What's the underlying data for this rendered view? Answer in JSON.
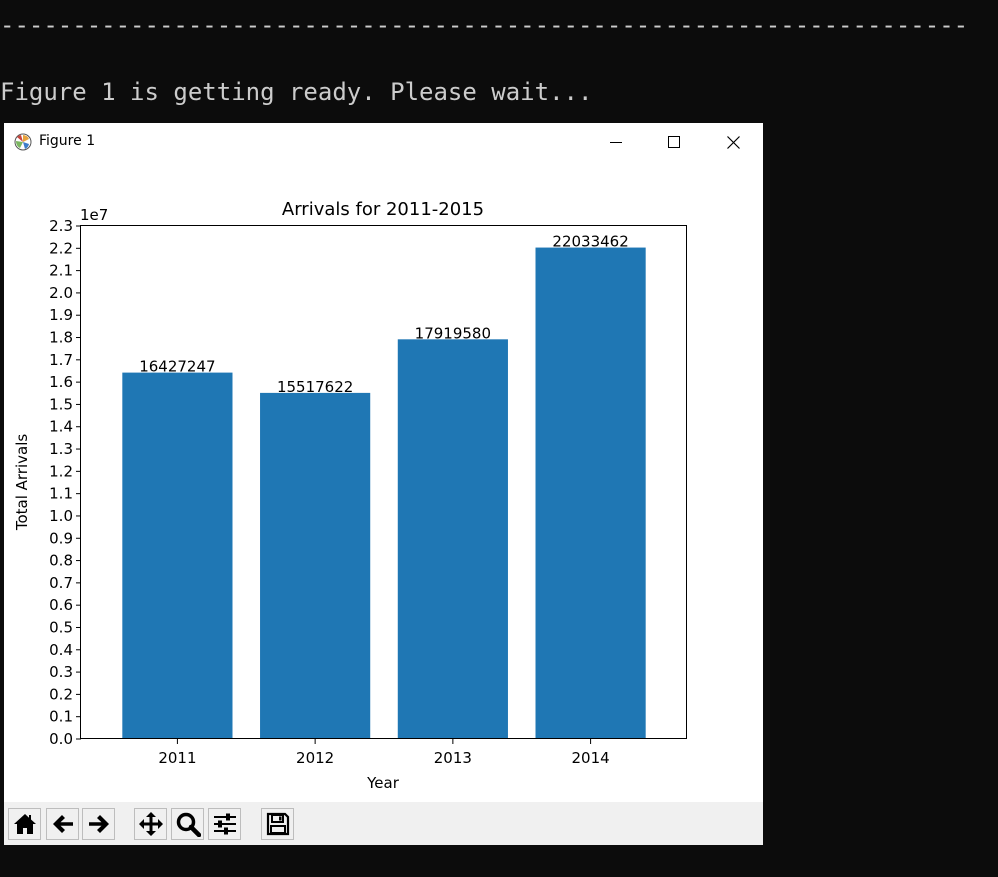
{
  "terminal": {
    "separator": "-------------------------------------------------------------------",
    "message": "Figure 1 is getting ready. Please wait..."
  },
  "window": {
    "title": "Figure 1",
    "controls": [
      "minimize-icon",
      "maximize-icon",
      "close-icon"
    ]
  },
  "toolbar": {
    "buttons": [
      "home-icon",
      "back-icon",
      "forward-icon",
      "pan-icon",
      "zoom-icon",
      "configure-icon",
      "save-icon"
    ]
  },
  "colors": {
    "bar": "#1f77b4",
    "terminal_bg": "#0c0c0c",
    "terminal_text": "#cccccc"
  },
  "chart_data": {
    "type": "bar",
    "title": "Arrivals for 2011-2015",
    "xlabel": "Year",
    "ylabel": "Total Arrivals",
    "offset_text": "1e7",
    "categories": [
      "2011",
      "2012",
      "2013",
      "2014"
    ],
    "values": [
      16427247,
      15517622,
      17919580,
      22033462
    ],
    "value_labels": [
      "16427247",
      "15517622",
      "17919580",
      "22033462"
    ],
    "ylim": [
      0,
      23000000
    ],
    "yticks": [
      "0.0",
      "0.1",
      "0.2",
      "0.3",
      "0.4",
      "0.5",
      "0.6",
      "0.7",
      "0.8",
      "0.9",
      "1.0",
      "1.1",
      "1.2",
      "1.3",
      "1.4",
      "1.5",
      "1.6",
      "1.7",
      "1.8",
      "1.9",
      "2.0",
      "2.1",
      "2.2",
      "2.3"
    ],
    "grid": false
  }
}
